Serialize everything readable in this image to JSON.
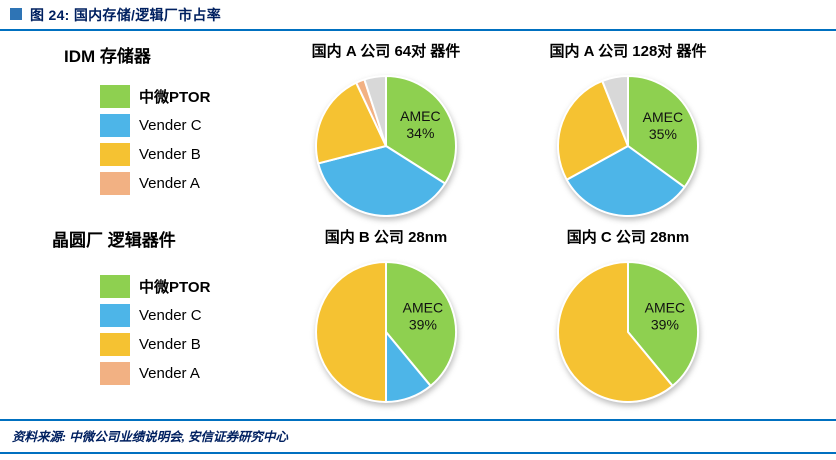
{
  "header": {
    "title": "图 24: 国内存储/逻辑厂市占率"
  },
  "legend_groups": [
    {
      "title": "IDM 存储器",
      "items": [
        {
          "label": "中微PTOR",
          "color": "#8ed050",
          "bold": true
        },
        {
          "label": "Vender C",
          "color": "#4db5e8",
          "bold": false
        },
        {
          "label": "Vender B",
          "color": "#f5c232",
          "bold": false
        },
        {
          "label": "Vender A",
          "color": "#f2b183",
          "bold": false
        }
      ]
    },
    {
      "title": "晶圆厂 逻辑器件",
      "items": [
        {
          "label": "中微PTOR",
          "color": "#8ed050",
          "bold": true
        },
        {
          "label": "Vender C",
          "color": "#4db5e8",
          "bold": false
        },
        {
          "label": "Vender B",
          "color": "#f5c232",
          "bold": false
        },
        {
          "label": "Vender A",
          "color": "#f2b183",
          "bold": false
        }
      ]
    }
  ],
  "chart_data": [
    {
      "type": "pie",
      "title": "国内 A 公司 64对 器件",
      "slices": [
        {
          "label": "AMEC",
          "value": 34,
          "color": "#8ed050"
        },
        {
          "label": "Vender C",
          "value": 37,
          "color": "#4db5e8"
        },
        {
          "label": "Vender B",
          "value": 22,
          "color": "#f5c232"
        },
        {
          "label": "Vender A",
          "value": 2,
          "color": "#f2b183"
        },
        {
          "label": "",
          "value": 5,
          "color": "#d8d8d8"
        }
      ],
      "callout": {
        "slice": "AMEC",
        "lines": [
          "AMEC",
          "34%"
        ]
      }
    },
    {
      "type": "pie",
      "title": "国内 A 公司 128对 器件",
      "slices": [
        {
          "label": "AMEC",
          "value": 35,
          "color": "#8ed050"
        },
        {
          "label": "Vender C",
          "value": 32,
          "color": "#4db5e8"
        },
        {
          "label": "Vender B",
          "value": 27,
          "color": "#f5c232"
        },
        {
          "label": "",
          "value": 6,
          "color": "#d8d8d8"
        }
      ],
      "callout": {
        "slice": "AMEC",
        "lines": [
          "AMEC",
          "35%"
        ]
      }
    },
    {
      "type": "pie",
      "title": "国内 B 公司 28nm",
      "slices": [
        {
          "label": "AMEC",
          "value": 39,
          "color": "#8ed050"
        },
        {
          "label": "Vender C",
          "value": 11,
          "color": "#4db5e8"
        },
        {
          "label": "Vender B",
          "value": 50,
          "color": "#f5c232"
        }
      ],
      "callout": {
        "slice": "AMEC",
        "lines": [
          "AMEC",
          "39%"
        ]
      }
    },
    {
      "type": "pie",
      "title": "国内 C 公司 28nm",
      "slices": [
        {
          "label": "AMEC",
          "value": 39,
          "color": "#8ed050"
        },
        {
          "label": "Vender B",
          "value": 61,
          "color": "#f5c232"
        }
      ],
      "callout": {
        "slice": "AMEC",
        "lines": [
          "AMEC",
          "39%"
        ]
      }
    }
  ],
  "footer": {
    "source": "资料来源: 中微公司业绩说明会, 安信证券研究中心"
  },
  "colors": {
    "accent_line": "#0070c0",
    "title_navy": "#002060",
    "bullet_blue": "#2e74b5"
  }
}
